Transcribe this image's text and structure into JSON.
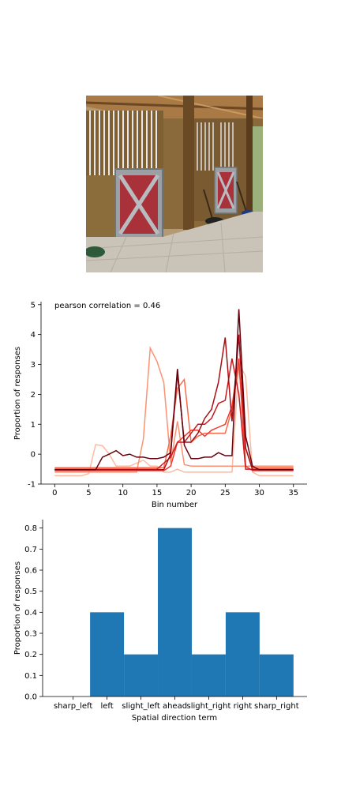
{
  "photo": {
    "description_icon": "horse-stable-photo"
  },
  "chart_data": [
    {
      "type": "line",
      "title": "pearson correlation = 0.46",
      "xlabel": "Bin number",
      "ylabel": "Proportion of responses",
      "xlim": [
        -2,
        37
      ],
      "ylim": [
        -1,
        5.1
      ],
      "xticks": [
        0,
        5,
        10,
        15,
        20,
        25,
        30,
        35
      ],
      "yticks": [
        -1,
        0,
        1,
        2,
        3,
        4,
        5
      ],
      "grid": false,
      "legend": "none",
      "x": [
        0,
        1,
        2,
        3,
        4,
        5,
        6,
        7,
        8,
        9,
        10,
        11,
        12,
        13,
        14,
        15,
        16,
        17,
        18,
        19,
        20,
        21,
        22,
        23,
        24,
        25,
        26,
        27,
        28,
        29,
        30,
        31,
        32,
        33,
        34,
        35
      ],
      "series": [
        {
          "color": "#fcbba1",
          "values": [
            -0.72,
            -0.72,
            -0.72,
            -0.72,
            -0.72,
            -0.65,
            0.32,
            0.28,
            0.0,
            -0.4,
            -0.4,
            -0.4,
            -0.3,
            -0.2,
            -0.4,
            -0.4,
            -0.6,
            -0.6,
            -0.5,
            -0.6,
            -0.6,
            -0.6,
            -0.6,
            -0.6,
            -0.6,
            -0.6,
            -0.6,
            3.05,
            2.6,
            -0.6,
            -0.72,
            -0.72,
            -0.72,
            -0.72,
            -0.72,
            -0.72
          ]
        },
        {
          "color": "#fc9272",
          "values": [
            -0.6,
            -0.6,
            -0.6,
            -0.6,
            -0.6,
            -0.6,
            -0.6,
            -0.6,
            -0.6,
            -0.6,
            -0.6,
            -0.6,
            -0.6,
            0.5,
            3.55,
            3.1,
            2.4,
            -0.3,
            1.1,
            -0.35,
            -0.4,
            -0.4,
            -0.4,
            -0.4,
            -0.4,
            -0.4,
            -0.4,
            -0.4,
            -0.4,
            -0.4,
            -0.4,
            -0.4,
            -0.4,
            -0.4,
            -0.4,
            -0.4
          ]
        },
        {
          "color": "#fb6a4a",
          "values": [
            -0.45,
            -0.45,
            -0.45,
            -0.45,
            -0.45,
            -0.45,
            -0.45,
            -0.45,
            -0.45,
            -0.45,
            -0.45,
            -0.45,
            -0.45,
            -0.45,
            -0.45,
            -0.45,
            -0.45,
            0.6,
            2.2,
            2.5,
            0.4,
            0.6,
            0.7,
            0.7,
            0.7,
            0.7,
            1.5,
            3.0,
            0.2,
            -0.45,
            -0.45,
            -0.45,
            -0.45,
            -0.45,
            -0.45,
            -0.45
          ]
        },
        {
          "color": "#ef3b2c",
          "values": [
            -0.55,
            -0.55,
            -0.55,
            -0.55,
            -0.55,
            -0.55,
            -0.55,
            -0.55,
            -0.55,
            -0.55,
            -0.55,
            -0.55,
            -0.55,
            -0.55,
            -0.55,
            -0.55,
            -0.55,
            -0.4,
            0.4,
            0.6,
            0.8,
            0.8,
            0.6,
            0.8,
            0.9,
            1.0,
            1.6,
            3.2,
            -0.4,
            -0.55,
            -0.55,
            -0.55,
            -0.55,
            -0.55,
            -0.55,
            -0.55
          ]
        },
        {
          "color": "#cb181d",
          "values": [
            -0.5,
            -0.5,
            -0.5,
            -0.5,
            -0.5,
            -0.5,
            -0.5,
            -0.5,
            -0.5,
            -0.5,
            -0.5,
            -0.5,
            -0.5,
            -0.5,
            -0.5,
            -0.5,
            -0.3,
            -0.1,
            0.4,
            0.4,
            0.7,
            1.0,
            1.0,
            1.2,
            1.7,
            1.8,
            3.2,
            2.0,
            -0.5,
            -0.5,
            -0.5,
            -0.5,
            -0.5,
            -0.5,
            -0.5,
            -0.5
          ]
        },
        {
          "color": "#a50f15",
          "values": [
            -0.52,
            -0.52,
            -0.52,
            -0.52,
            -0.52,
            -0.52,
            -0.52,
            -0.52,
            -0.52,
            -0.52,
            -0.52,
            -0.52,
            -0.52,
            -0.52,
            -0.52,
            -0.52,
            -0.52,
            0.0,
            2.7,
            0.4,
            0.4,
            0.7,
            1.2,
            1.5,
            2.4,
            3.9,
            1.1,
            4.0,
            0.2,
            -0.52,
            -0.52,
            -0.52,
            -0.52,
            -0.52,
            -0.52,
            -0.52
          ]
        },
        {
          "color": "#67000d",
          "values": [
            -0.52,
            -0.52,
            -0.52,
            -0.52,
            -0.52,
            -0.52,
            -0.52,
            -0.1,
            0.0,
            0.12,
            -0.05,
            0.0,
            -0.1,
            -0.1,
            -0.15,
            -0.15,
            -0.1,
            0.05,
            2.85,
            0.3,
            -0.15,
            -0.15,
            -0.1,
            -0.1,
            0.05,
            -0.05,
            -0.05,
            4.85,
            0.6,
            -0.4,
            -0.52,
            -0.52,
            -0.52,
            -0.52,
            -0.52,
            -0.52
          ]
        }
      ]
    },
    {
      "type": "bar",
      "title": "",
      "xlabel": "Spatial direction term",
      "ylabel": "Proportion of responses",
      "categories": [
        "sharp_left",
        "left",
        "slight_left",
        "ahead",
        "slight_right",
        "right",
        "sharp_right"
      ],
      "values": [
        0.0,
        0.4,
        0.2,
        0.8,
        0.2,
        0.4,
        0.2
      ],
      "ylim": [
        0,
        0.84
      ],
      "yticks": [
        0.0,
        0.1,
        0.2,
        0.3,
        0.4,
        0.5,
        0.6,
        0.7,
        0.8
      ],
      "ytick_labels": [
        "0.0",
        "0.1",
        "0.2",
        "0.3",
        "0.4",
        "0.5",
        "0.6",
        "0.7",
        "0.8"
      ],
      "color": "#1f77b4",
      "grid": false,
      "legend": "none"
    }
  ]
}
